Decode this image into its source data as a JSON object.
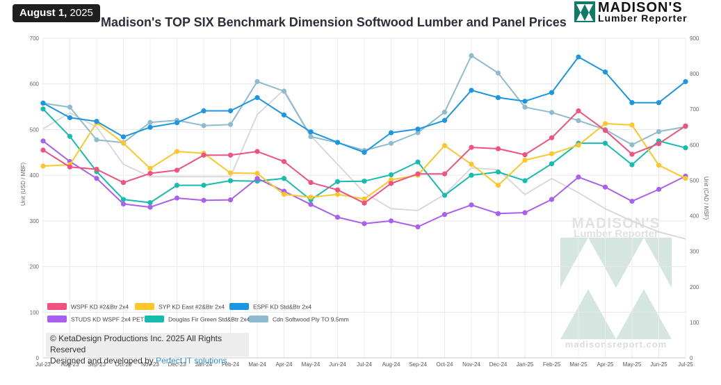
{
  "header": {
    "date_bold": "August 1,",
    "date_year": "2025",
    "title": "Madison's TOP SIX Benchmark Dimension Softwood Lumber and Panel Prices",
    "logo_name": "MADISON'S",
    "logo_sub": "Lumber Reporter"
  },
  "watermark": {
    "name": "MADISON'S",
    "sub": "Lumber Reporter",
    "url": "madisonsreport.com"
  },
  "footer": {
    "copyright": "© KetaDesign Productions Inc. 2025 All Rights Reserved",
    "designed_by": "Designed and developed by",
    "link": "Perfect IT solutions"
  },
  "chart_data": {
    "type": "line",
    "ylabel": "Unit (USD / MBF)",
    "y2label": "Unit (CAD / MSF)",
    "ylim": [
      0,
      700
    ],
    "y2lim": [
      0,
      900
    ],
    "yticks": [
      0,
      100,
      200,
      300,
      400,
      500,
      600,
      700
    ],
    "y2ticks": [
      0,
      100,
      200,
      300,
      400,
      500,
      600,
      700,
      800,
      900
    ],
    "grid": true,
    "legend_position": "bottom-left",
    "categories": [
      "Jul-23",
      "Aug-23",
      "Sep-23",
      "Oct-23",
      "Nov-23",
      "Dec-23",
      "Jan-24",
      "Feb-24",
      "Mar-24",
      "Apr-24",
      "May-24",
      "Jun-24",
      "Jul-24",
      "Aug-24",
      "Sep-24",
      "Oct-24",
      "Nov-24",
      "Dec-24",
      "Jan-25",
      "Feb-25",
      "Mar-25",
      "Apr-25",
      "May-25",
      "Jun-25",
      "Jul-25"
    ],
    "series": [
      {
        "name": "WSPF KD #2&Btr 2x4",
        "color": "#f0517d",
        "axis": "left",
        "values": [
          455,
          418,
          413,
          384,
          404,
          411,
          444,
          444,
          452,
          430,
          384,
          368,
          339,
          382,
          403,
          403,
          461,
          458,
          445,
          482,
          541,
          498,
          446,
          469,
          508
        ]
      },
      {
        "name": "SYP KD East #2&Btr 2x4",
        "color": "#fdc62a",
        "axis": "left",
        "values": [
          420,
          423,
          515,
          470,
          415,
          452,
          448,
          405,
          404,
          358,
          352,
          358,
          348,
          390,
          400,
          465,
          424,
          378,
          433,
          447,
          466,
          513,
          510,
          422,
          393
        ]
      },
      {
        "name": "ESPF KD Std&Btr 2x4",
        "color": "#1a96e3",
        "axis": "left",
        "values": [
          558,
          526,
          518,
          484,
          505,
          515,
          541,
          541,
          570,
          532,
          495,
          472,
          450,
          493,
          501,
          520,
          586,
          570,
          562,
          581,
          659,
          626,
          559,
          559,
          605
        ]
      },
      {
        "name": "STUDS KD WSPF 2x4 PET",
        "color": "#a960ef",
        "axis": "left",
        "values": [
          475,
          430,
          393,
          337,
          330,
          350,
          345,
          346,
          393,
          365,
          336,
          308,
          294,
          300,
          287,
          314,
          335,
          316,
          318,
          347,
          396,
          374,
          343,
          369,
          398
        ]
      },
      {
        "name": "Douglas Fir Green Std&Btr 2x4",
        "color": "#17bcad",
        "axis": "left",
        "values": [
          545,
          485,
          408,
          347,
          340,
          378,
          378,
          388,
          387,
          393,
          346,
          386,
          387,
          401,
          429,
          356,
          400,
          407,
          388,
          425,
          470,
          470,
          423,
          475,
          460
        ]
      },
      {
        "name": "Cdn Softwood Ply TO 9.5mm",
        "color": "#8ebbce",
        "axis": "right",
        "values": [
          717,
          706,
          614,
          606,
          663,
          669,
          654,
          657,
          778,
          751,
          623,
          606,
          584,
          604,
          634,
          692,
          851,
          802,
          706,
          691,
          668,
          643,
          600,
          637,
          651
        ]
      },
      {
        "name": "",
        "color": "#d9d9d9",
        "axis": "right",
        "values": [
          645,
          690,
          650,
          545,
          510,
          510,
          510,
          510,
          685,
          755,
          625,
          545,
          465,
          420,
          415,
          460,
          535,
          530,
          460,
          505,
          465,
          420,
          385,
          355,
          335
        ]
      }
    ]
  }
}
